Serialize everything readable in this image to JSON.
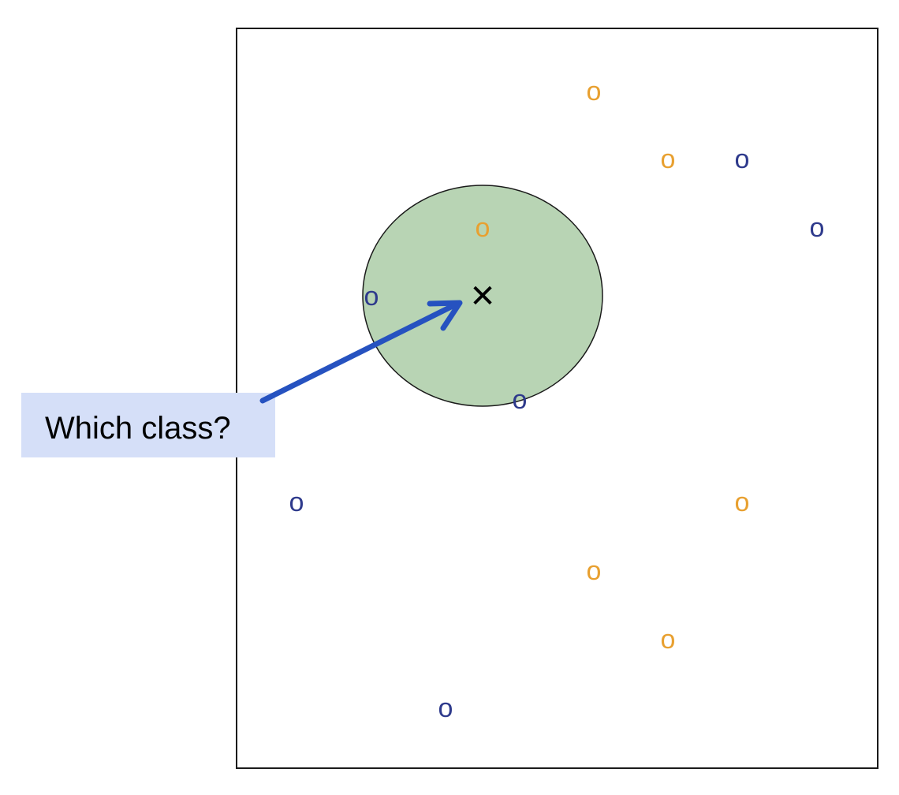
{
  "colors": {
    "class_a": "#e8a030",
    "class_b": "#2e3a8c",
    "neighborhood_fill": "#b8d4b4",
    "neighborhood_stroke": "#1a1a1a",
    "arrow": "#2652c0",
    "label_bg": "#d5dff8",
    "frame": "#1a1a1a"
  },
  "point_glyph": "o",
  "query_glyph": "✕",
  "label": {
    "text": "Which class?"
  },
  "points": [
    {
      "class": "class_a"
    },
    {
      "class": "class_a"
    },
    {
      "class": "class_b"
    },
    {
      "class": "class_b"
    },
    {
      "class": "class_a"
    },
    {
      "class": "class_b"
    },
    {
      "class": "class_b"
    },
    {
      "class": "class_b"
    },
    {
      "class": "class_a"
    },
    {
      "class": "class_a"
    },
    {
      "class": "class_a"
    },
    {
      "class": "class_b"
    }
  ]
}
